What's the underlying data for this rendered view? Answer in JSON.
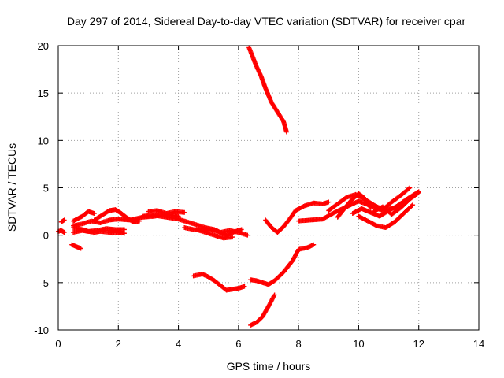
{
  "chart_data": {
    "type": "scatter",
    "title": "Day 297 of 2014, Sidereal Day-to-day VTEC variation (SDTVAR) for receiver cpar",
    "xlabel": "GPS time / hours",
    "ylabel": "SDTVAR / TECUs",
    "xlim": [
      0,
      14
    ],
    "ylim": [
      -10,
      20
    ],
    "x_ticks": [
      "0",
      "2",
      "4",
      "6",
      "8",
      "10",
      "12",
      "14"
    ],
    "y_ticks": [
      "-10",
      "-5",
      "0",
      "5",
      "10",
      "15",
      "20"
    ],
    "grid": true,
    "legend": "none",
    "marker": "plus",
    "color": "#ff0000",
    "series": [
      {
        "x": [
          0.0,
          0.1,
          0.2
        ],
        "y": [
          0.4,
          0.5,
          0.3
        ]
      },
      {
        "x": [
          0.1,
          0.2
        ],
        "y": [
          1.4,
          1.6
        ]
      },
      {
        "x": [
          0.45,
          0.6,
          0.75
        ],
        "y": [
          -1.0,
          -1.2,
          -1.4
        ]
      },
      {
        "x": [
          0.5,
          0.8,
          1.0,
          1.2,
          1.4,
          1.7,
          2.0,
          2.2
        ],
        "y": [
          0.3,
          0.5,
          0.4,
          0.3,
          0.4,
          0.3,
          0.3,
          0.2
        ]
      },
      {
        "x": [
          0.5,
          0.8,
          1.0,
          1.3,
          1.6,
          1.9,
          2.2
        ],
        "y": [
          0.8,
          0.6,
          0.4,
          0.5,
          0.7,
          0.6,
          0.6
        ]
      },
      {
        "x": [
          0.5,
          0.8,
          1.1,
          1.4,
          1.7,
          2.0,
          2.4,
          2.8,
          3.2,
          3.6,
          4.0
        ],
        "y": [
          1.0,
          1.2,
          1.5,
          1.3,
          1.6,
          1.7,
          1.6,
          1.9,
          2.0,
          2.2,
          2.0
        ]
      },
      {
        "x": [
          0.5,
          0.8,
          1.0,
          1.2
        ],
        "y": [
          1.5,
          2.0,
          2.5,
          2.3
        ]
      },
      {
        "x": [
          1.2,
          1.5,
          1.7,
          1.9,
          2.1,
          2.3,
          2.5,
          2.7
        ],
        "y": [
          1.6,
          2.2,
          2.6,
          2.7,
          2.3,
          1.8,
          1.4,
          1.5
        ]
      },
      {
        "x": [
          3.0,
          3.3,
          3.6,
          3.9,
          4.2
        ],
        "y": [
          2.5,
          2.6,
          2.3,
          2.5,
          2.4
        ]
      },
      {
        "x": [
          2.8,
          3.2,
          3.6,
          4.0,
          4.3,
          4.6,
          4.9,
          5.2,
          5.4,
          5.6,
          5.9,
          6.1
        ],
        "y": [
          2.0,
          2.1,
          1.9,
          1.7,
          1.4,
          1.1,
          0.8,
          0.6,
          0.3,
          0.0,
          0.4,
          0.6
        ]
      },
      {
        "x": [
          4.2,
          4.5,
          4.8,
          5.1,
          5.4,
          5.7,
          6.0,
          6.3
        ],
        "y": [
          0.8,
          0.6,
          0.5,
          0.6,
          0.3,
          0.5,
          0.3,
          0.0
        ]
      },
      {
        "x": [
          4.6,
          4.9,
          5.2,
          5.5,
          5.8
        ],
        "y": [
          0.6,
          0.3,
          0.0,
          -0.3,
          -0.2
        ]
      },
      {
        "x": [
          4.5,
          4.8,
          5.0,
          5.2,
          5.4,
          5.6,
          5.8,
          6.0,
          6.2
        ],
        "y": [
          -4.3,
          -4.1,
          -4.4,
          -4.8,
          -5.3,
          -5.8,
          -5.7,
          -5.6,
          -5.4
        ]
      },
      {
        "x": [
          6.35,
          6.45,
          6.6,
          6.75,
          6.9,
          7.1,
          7.3,
          7.5,
          7.6
        ],
        "y": [
          19.8,
          19.0,
          17.8,
          16.8,
          15.5,
          14.0,
          13.0,
          12.0,
          10.9
        ]
      },
      {
        "x": [
          6.4,
          6.6,
          6.8,
          7.0,
          7.2,
          7.5,
          7.8,
          8.0,
          8.3,
          8.5
        ],
        "y": [
          -4.7,
          -4.8,
          -5.0,
          -5.2,
          -4.8,
          -3.9,
          -2.7,
          -1.5,
          -1.3,
          -1.0
        ]
      },
      {
        "x": [
          6.4,
          6.6,
          6.8,
          7.0,
          7.2
        ],
        "y": [
          -9.5,
          -9.2,
          -8.6,
          -7.5,
          -6.3
        ]
      },
      {
        "x": [
          6.9,
          7.1,
          7.3,
          7.5,
          7.7,
          7.9,
          8.2,
          8.5,
          8.8,
          9.0
        ],
        "y": [
          1.6,
          0.8,
          0.3,
          0.9,
          1.7,
          2.6,
          3.1,
          3.4,
          3.3,
          3.5
        ]
      },
      {
        "x": [
          8.0,
          8.4,
          8.8,
          9.2,
          9.6,
          10.0,
          10.4,
          10.8,
          11.2,
          11.6,
          12.0
        ],
        "y": [
          1.5,
          1.6,
          1.7,
          2.4,
          3.0,
          3.6,
          3.1,
          2.6,
          2.9,
          3.8,
          4.6
        ]
      },
      {
        "x": [
          9.0,
          9.3,
          9.6,
          9.9,
          10.2,
          10.5,
          10.8,
          11.1,
          11.4,
          11.7
        ],
        "y": [
          2.6,
          3.3,
          4.0,
          4.3,
          3.8,
          3.2,
          2.7,
          3.5,
          4.2,
          5.0
        ]
      },
      {
        "x": [
          9.3,
          9.5,
          9.7,
          10.0,
          10.2,
          10.4
        ],
        "y": [
          1.9,
          2.7,
          3.5,
          4.4,
          3.9,
          2.9
        ]
      },
      {
        "x": [
          10.0,
          10.3,
          10.6,
          10.9,
          11.2,
          11.5,
          11.8
        ],
        "y": [
          2.0,
          1.5,
          1.0,
          0.8,
          1.4,
          2.3,
          3.2
        ]
      },
      {
        "x": [
          10.5,
          10.8,
          11.1,
          11.4,
          11.7,
          12.0
        ],
        "y": [
          2.5,
          3.0,
          2.2,
          2.9,
          3.8,
          4.5
        ]
      },
      {
        "x": [
          9.8,
          10.1,
          10.4,
          10.7,
          11.0,
          11.3,
          11.6
        ],
        "y": [
          2.3,
          2.8,
          2.4,
          2.0,
          2.6,
          3.1,
          3.7
        ]
      }
    ]
  }
}
